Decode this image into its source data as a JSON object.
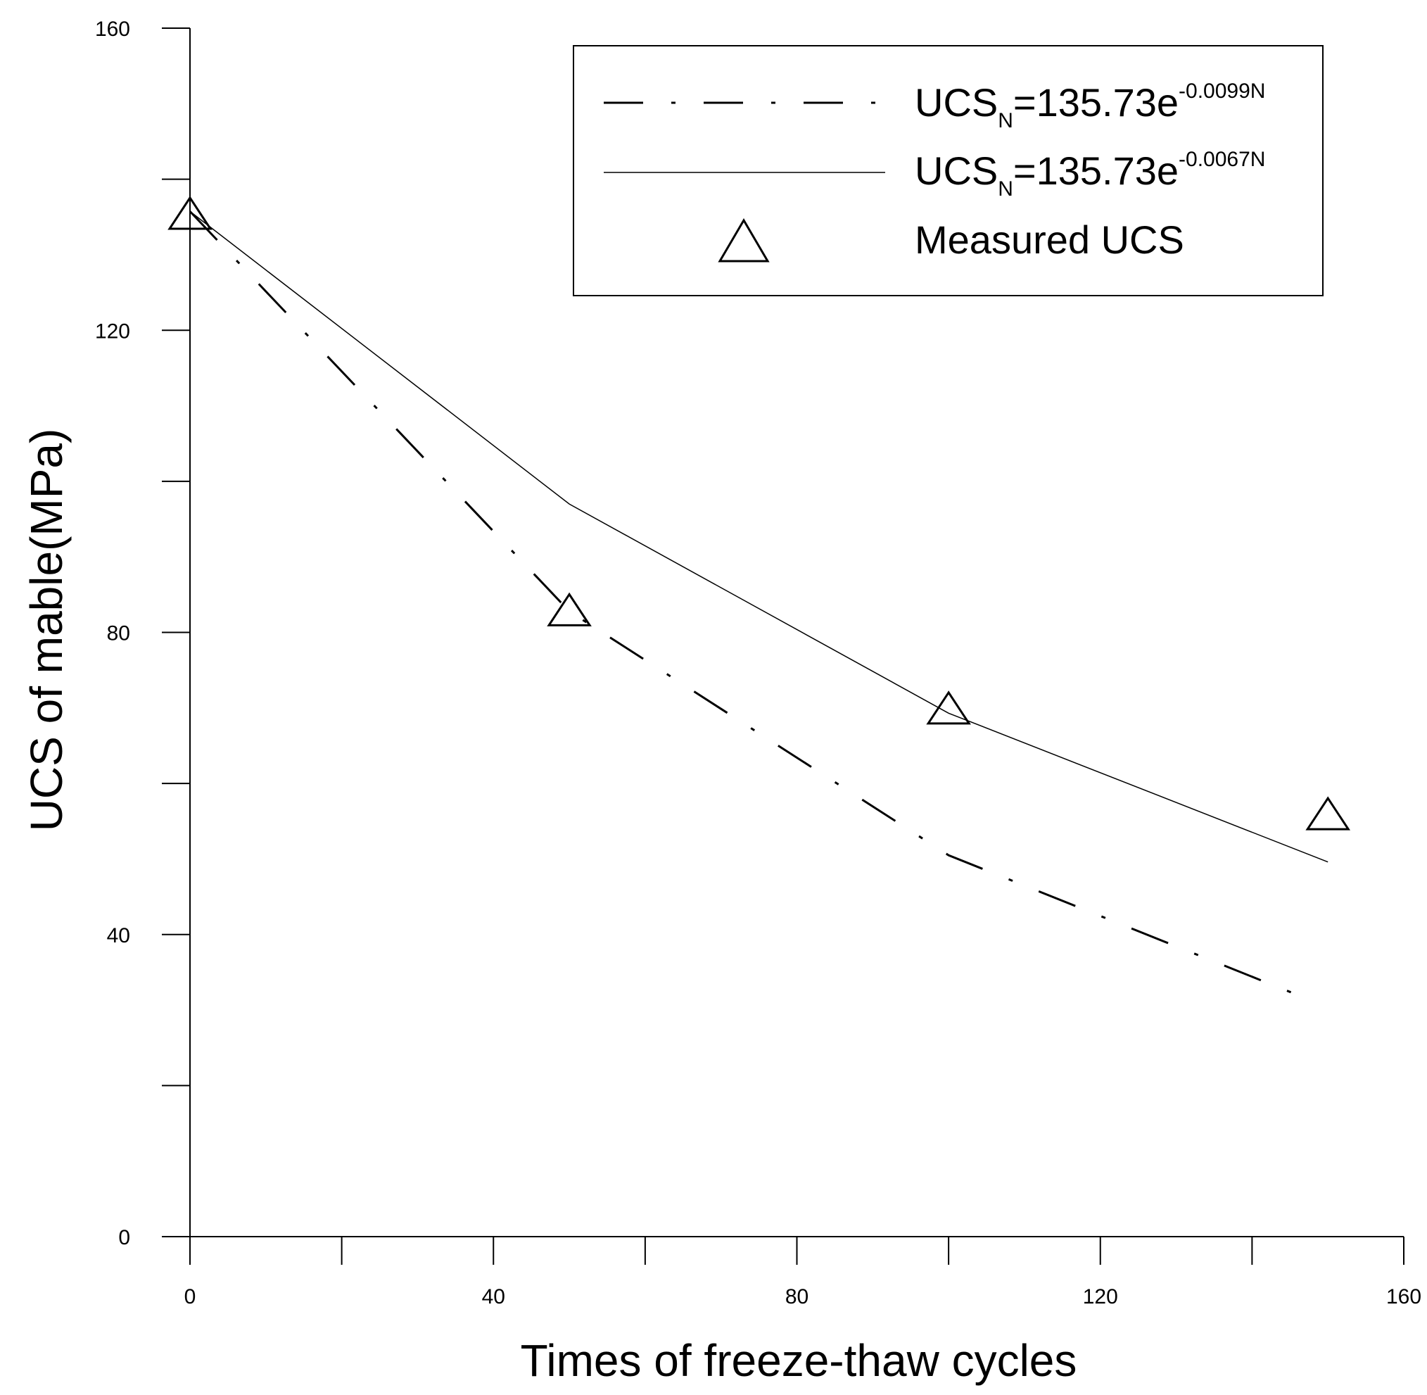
{
  "chart_data": {
    "type": "line",
    "title": "",
    "xlabel": "Times of freeze-thaw cycles",
    "ylabel": "UCS of mable(MPa)",
    "xlim": [
      0,
      160
    ],
    "ylim": [
      0,
      160
    ],
    "x_ticks": [
      0,
      40,
      80,
      120,
      160
    ],
    "y_ticks": [
      0,
      40,
      80,
      120,
      160
    ],
    "x_minor_step": 20,
    "y_minor_step": 20,
    "grid": false,
    "legend_position": "top-right",
    "series": [
      {
        "name": "fit-0.0099",
        "legend": {
          "base": "UCS",
          "sub": "N",
          "mid": "=135.73e",
          "sup": "-0.0099N"
        },
        "style": "dash-dot",
        "x": [
          0,
          50,
          100,
          147
        ],
        "y": [
          135.73,
          82.8,
          50.5,
          31.6
        ]
      },
      {
        "name": "fit-0.0067",
        "legend": {
          "base": "UCS",
          "sub": "N",
          "mid": "=135.73e",
          "sup": "-0.0067N"
        },
        "style": "solid",
        "x": [
          0,
          50,
          100,
          150
        ],
        "y": [
          135.73,
          97.0,
          69.3,
          49.6
        ]
      },
      {
        "name": "Measured UCS",
        "legend": {
          "text": "Measured UCS"
        },
        "style": "triangle-marker",
        "x": [
          0,
          50,
          100,
          150
        ],
        "y": [
          135.0,
          82.5,
          69.5,
          55.5
        ]
      }
    ]
  }
}
